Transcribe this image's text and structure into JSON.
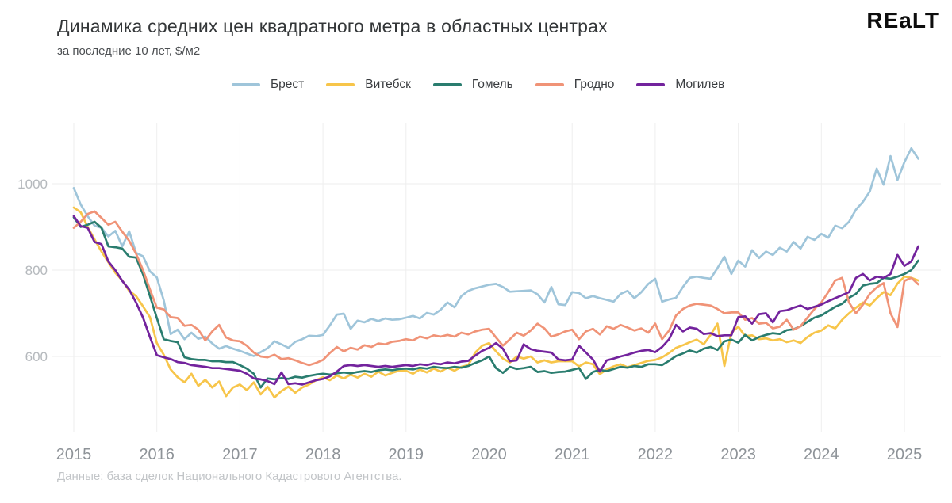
{
  "page": {
    "title": "Динамика средних цен квадратного метра в областных центрах",
    "subtitle": "за последние 10 лет, $/м2",
    "logo": {
      "left": "RE",
      "mid": "A",
      "right": "LT"
    },
    "footer": "Данные: база сделок Национального Кадастрового Агентства."
  },
  "legend": [
    {
      "label": "Брест",
      "color": "#9fc5da"
    },
    {
      "label": "Витебск",
      "color": "#f7c54a"
    },
    {
      "label": "Гомель",
      "color": "#2a7d6f"
    },
    {
      "label": "Гродно",
      "color": "#f09377"
    },
    {
      "label": "Могилев",
      "color": "#73239d"
    }
  ],
  "chart_data": {
    "type": "line",
    "title": "Динамика средних цен квадратного метра в областных центрах",
    "subtitle": "за последние 10 лет, $/м2",
    "x_start": 2015,
    "points_per_year": 12,
    "x_ticks": [
      2015,
      2016,
      2017,
      2018,
      2019,
      2020,
      2021,
      2022,
      2023,
      2024,
      2025
    ],
    "y_ticks": [
      600,
      800,
      1000
    ],
    "ylim": [
      460,
      1120
    ],
    "grid": true,
    "legend_position": "top",
    "series": [
      {
        "key": "brest",
        "name": "Брест",
        "color": "#9fc5da",
        "values": [
          990,
          952,
          925,
          903,
          898,
          878,
          891,
          855,
          890,
          840,
          832,
          797,
          783,
          730,
          652,
          662,
          640,
          655,
          641,
          646,
          630,
          618,
          624,
          618,
          613,
          607,
          601,
          610,
          619,
          635,
          628,
          620,
          634,
          640,
          648,
          647,
          650,
          672,
          697,
          699,
          664,
          683,
          679,
          687,
          682,
          688,
          685,
          686,
          690,
          694,
          688,
          701,
          697,
          708,
          725,
          714,
          740,
          752,
          758,
          762,
          766,
          768,
          761,
          750,
          751,
          752,
          753,
          744,
          725,
          761,
          721,
          719,
          749,
          747,
          735,
          740,
          735,
          731,
          727,
          745,
          752,
          735,
          749,
          768,
          780,
          727,
          732,
          736,
          761,
          782,
          785,
          782,
          780,
          805,
          831,
          791,
          822,
          808,
          846,
          828,
          843,
          835,
          852,
          843,
          865,
          850,
          877,
          870,
          884,
          875,
          903,
          897,
          912,
          940,
          958,
          982,
          1035,
          998,
          1064,
          1009,
          1050,
          1082,
          1058
        ]
      },
      {
        "key": "vitebsk",
        "name": "Витебск",
        "color": "#f7c54a",
        "values": [
          945,
          934,
          900,
          871,
          843,
          818,
          794,
          776,
          752,
          740,
          716,
          691,
          631,
          604,
          570,
          552,
          540,
          560,
          532,
          546,
          528,
          542,
          508,
          528,
          535,
          522,
          540,
          512,
          530,
          505,
          520,
          530,
          516,
          528,
          535,
          545,
          552,
          545,
          556,
          549,
          558,
          551,
          560,
          553,
          565,
          556,
          562,
          567,
          567,
          560,
          570,
          563,
          572,
          565,
          574,
          567,
          576,
          580,
          609,
          625,
          631,
          612,
          595,
          586,
          600,
          595,
          600,
          586,
          591,
          586,
          589,
          589,
          589,
          577,
          586,
          582,
          559,
          570,
          577,
          582,
          575,
          580,
          585,
          590,
          592,
          598,
          608,
          620,
          626,
          633,
          639,
          628,
          650,
          676,
          578,
          655,
          669,
          647,
          649,
          640,
          642,
          637,
          640,
          633,
          637,
          631,
          645,
          655,
          660,
          672,
          665,
          685,
          700,
          713,
          725,
          718,
          735,
          749,
          742,
          769,
          785,
          782,
          776
        ]
      },
      {
        "key": "gomel",
        "name": "Гомель",
        "color": "#2a7d6f",
        "values": [
          922,
          900,
          905,
          912,
          898,
          855,
          853,
          850,
          831,
          829,
          790,
          740,
          689,
          640,
          636,
          633,
          598,
          594,
          592,
          592,
          589,
          589,
          587,
          587,
          580,
          572,
          560,
          528,
          549,
          547,
          550,
          548,
          553,
          551,
          555,
          558,
          560,
          558,
          561,
          563,
          561,
          564,
          566,
          564,
          568,
          570,
          568,
          571,
          572,
          570,
          574,
          572,
          576,
          574,
          573,
          576,
          574,
          578,
          585,
          591,
          600,
          573,
          562,
          576,
          571,
          573,
          576,
          564,
          566,
          562,
          564,
          565,
          569,
          573,
          548,
          564,
          569,
          566,
          571,
          576,
          574,
          578,
          576,
          582,
          582,
          580,
          590,
          601,
          607,
          614,
          609,
          618,
          622,
          615,
          635,
          639,
          632,
          650,
          637,
          645,
          650,
          654,
          652,
          661,
          663,
          670,
          680,
          690,
          695,
          705,
          715,
          722,
          736,
          745,
          764,
          768,
          770,
          782,
          780,
          785,
          791,
          800,
          822
        ]
      },
      {
        "key": "grodno",
        "name": "Гродно",
        "color": "#f09377",
        "values": [
          898,
          912,
          930,
          936,
          921,
          905,
          912,
          889,
          868,
          838,
          800,
          755,
          713,
          709,
          691,
          689,
          671,
          673,
          662,
          637,
          658,
          673,
          644,
          637,
          635,
          625,
          609,
          600,
          598,
          604,
          594,
          596,
          591,
          585,
          580,
          585,
          592,
          608,
          622,
          612,
          620,
          616,
          626,
          622,
          630,
          628,
          634,
          636,
          640,
          637,
          646,
          642,
          649,
          646,
          650,
          646,
          655,
          651,
          658,
          662,
          664,
          644,
          625,
          640,
          655,
          648,
          660,
          676,
          665,
          646,
          651,
          658,
          662,
          640,
          658,
          664,
          651,
          670,
          664,
          673,
          667,
          660,
          665,
          655,
          676,
          640,
          660,
          695,
          710,
          718,
          722,
          720,
          718,
          710,
          700,
          702,
          702,
          685,
          689,
          676,
          678,
          665,
          669,
          685,
          662,
          670,
          690,
          710,
          725,
          749,
          776,
          782,
          725,
          700,
          720,
          745,
          760,
          770,
          700,
          668,
          775,
          782,
          767
        ]
      },
      {
        "key": "mogilev",
        "name": "Могилев",
        "color": "#73239d",
        "values": [
          925,
          902,
          898,
          865,
          860,
          820,
          800,
          775,
          755,
          725,
          690,
          645,
          603,
          598,
          594,
          587,
          585,
          580,
          578,
          576,
          573,
          573,
          571,
          569,
          567,
          560,
          549,
          547,
          543,
          536,
          563,
          536,
          538,
          535,
          540,
          545,
          548,
          554,
          565,
          578,
          580,
          578,
          580,
          578,
          576,
          578,
          576,
          578,
          580,
          578,
          582,
          580,
          584,
          582,
          586,
          584,
          588,
          590,
          602,
          613,
          620,
          631,
          618,
          589,
          591,
          628,
          617,
          613,
          611,
          609,
          593,
          591,
          593,
          625,
          609,
          593,
          565,
          591,
          595,
          600,
          604,
          609,
          613,
          615,
          610,
          622,
          640,
          673,
          658,
          667,
          664,
          652,
          654,
          647,
          649,
          649,
          691,
          693,
          676,
          698,
          700,
          679,
          705,
          707,
          713,
          718,
          710,
          715,
          720,
          728,
          735,
          742,
          749,
          782,
          791,
          776,
          785,
          782,
          791,
          835,
          810,
          820,
          855
        ]
      }
    ]
  }
}
